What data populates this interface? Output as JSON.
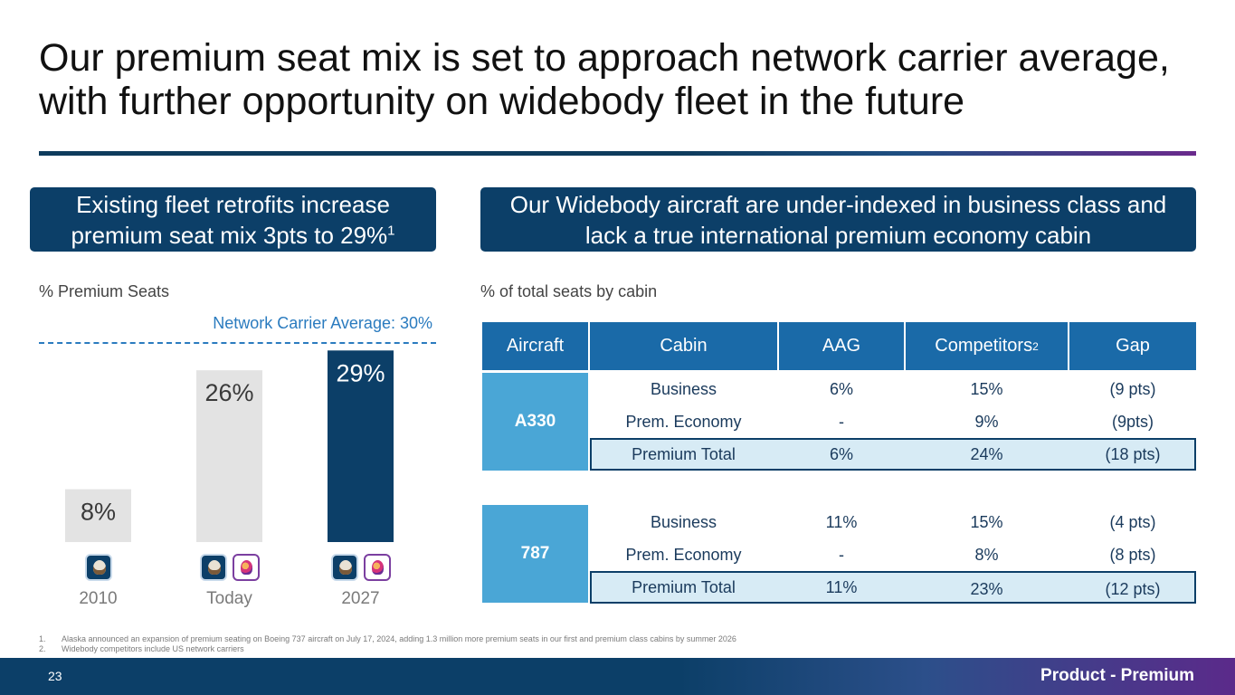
{
  "title": {
    "line1": "Our premium seat mix is set to approach network carrier average,",
    "line2": "with further opportunity on widebody fleet in the future"
  },
  "left_panel": {
    "heading_line1": "Existing fleet retrofits increase",
    "heading_line2": "premium seat mix 3pts to 29%",
    "heading_sup": "1",
    "label": "% Premium Seats",
    "avg_label": "Network Carrier Average: 30%"
  },
  "right_panel": {
    "heading_line1": "Our Widebody aircraft are under-indexed in business class and",
    "heading_line2": "lack a true international premium economy cabin",
    "label": "% of total seats by cabin"
  },
  "chart_data": {
    "type": "bar",
    "categories": [
      "2010",
      "Today",
      "2027"
    ],
    "values": [
      8,
      26,
      29
    ],
    "labels": [
      "8%",
      "26%",
      "29%"
    ],
    "reference_line": {
      "label": "Network Carrier Average: 30%",
      "value": 30
    },
    "ylim": [
      0,
      30
    ],
    "colors": [
      "#e3e3e3",
      "#e3e3e3",
      "#0c3f68"
    ],
    "label_colors": [
      "#3a3a3a",
      "#3a3a3a",
      "#ffffff"
    ],
    "logos": [
      [
        "alaska"
      ],
      [
        "alaska",
        "hawaiian"
      ],
      [
        "alaska",
        "hawaiian"
      ]
    ]
  },
  "table": {
    "headers": [
      "Aircraft",
      "Cabin",
      "AAG",
      "Competitors",
      "Gap"
    ],
    "competitors_sup": "2",
    "groups": [
      {
        "aircraft": "A330",
        "rows": [
          {
            "cabin": "Business",
            "aag": "6%",
            "competitors": "15%",
            "gap": "(9 pts)"
          },
          {
            "cabin": "Prem. Economy",
            "aag": "-",
            "competitors": "9%",
            "gap": "(9pts)"
          },
          {
            "cabin": "Premium Total",
            "aag": "6%",
            "competitors": "24%",
            "gap": "(18 pts)"
          }
        ]
      },
      {
        "aircraft": "787",
        "rows": [
          {
            "cabin": "Business",
            "aag": "11%",
            "competitors": "15%",
            "gap": "(4 pts)"
          },
          {
            "cabin": "Prem. Economy",
            "aag": "-",
            "competitors": "8%",
            "gap": "(8 pts)"
          },
          {
            "cabin": "Premium Total",
            "aag": "11%",
            "competitors": "23%",
            "gap": "(12 pts)"
          }
        ]
      }
    ]
  },
  "footnotes": [
    {
      "num": "1.",
      "text": "Alaska announced an expansion of premium seating on Boeing 737 aircraft on July 17, 2024, adding 1.3 million more premium seats in our first and premium class cabins by summer 2026"
    },
    {
      "num": "2.",
      "text": "Widebody competitors include US network carriers"
    }
  ],
  "footer": {
    "page_number": "23",
    "section_tag": "Product - Premium"
  }
}
